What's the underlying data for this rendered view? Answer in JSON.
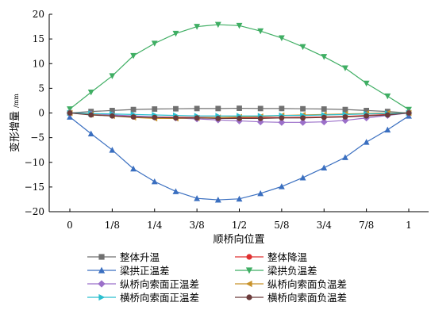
{
  "chart_data": {
    "type": "line",
    "xlabel": "顺桥向位置",
    "ylabel": "变形增量",
    "yunit": "/mm",
    "x_ticks": [
      "0",
      "1/8",
      "1/4",
      "3/8",
      "1/2",
      "5/8",
      "3/4",
      "7/8",
      "1"
    ],
    "y_ticks": [
      "20",
      "15",
      "10",
      "5",
      "0",
      "−5",
      "−10",
      "−15",
      "−20"
    ],
    "ylim": [
      -20,
      20
    ],
    "xlim": [
      0,
      1
    ],
    "legend_position": "bottom",
    "x": [
      0,
      0.0625,
      0.125,
      0.1875,
      0.25,
      0.3125,
      0.375,
      0.4375,
      0.5,
      0.5625,
      0.625,
      0.6875,
      0.75,
      0.8125,
      0.875,
      0.9375,
      1
    ],
    "series": [
      {
        "name": "整体升温",
        "color": "#707070",
        "marker": "square",
        "values": [
          0,
          0.3,
          0.5,
          0.7,
          0.8,
          0.85,
          0.9,
          0.9,
          0.95,
          0.9,
          0.9,
          0.85,
          0.8,
          0.7,
          0.5,
          0.3,
          0
        ]
      },
      {
        "name": "整体降温",
        "color": "#e03030",
        "marker": "circle",
        "values": [
          0,
          -0.3,
          -0.5,
          -0.7,
          -0.8,
          -0.85,
          -0.9,
          -0.9,
          -0.95,
          -0.9,
          -0.9,
          -0.85,
          -0.8,
          -0.7,
          -0.5,
          -0.3,
          0
        ]
      },
      {
        "name": "梁拱正温差",
        "color": "#3a6fc0",
        "marker": "triangle-up",
        "values": [
          -0.8,
          -4.2,
          -7.5,
          -11.3,
          -13.9,
          -15.9,
          -17.3,
          -17.6,
          -17.4,
          -16.3,
          -14.9,
          -13.1,
          -11.1,
          -9.0,
          -5.9,
          -3.4,
          -0.6
        ]
      },
      {
        "name": "梁拱负温差",
        "color": "#3fae63",
        "marker": "triangle-down",
        "values": [
          0.8,
          4.2,
          7.5,
          11.6,
          14.1,
          16.1,
          17.5,
          17.9,
          17.7,
          16.6,
          15.2,
          13.4,
          11.4,
          9.1,
          6.0,
          3.4,
          0.7
        ]
      },
      {
        "name": "纵桥向索面正温差",
        "color": "#9b6fc9",
        "marker": "diamond",
        "values": [
          0,
          -0.2,
          -0.4,
          -0.6,
          -0.8,
          -1.0,
          -1.2,
          -1.4,
          -1.6,
          -1.8,
          -1.9,
          -1.9,
          -1.8,
          -1.5,
          -1.0,
          -0.5,
          0
        ]
      },
      {
        "name": "纵桥向索面负温差",
        "color": "#c8922a",
        "marker": "triangle-left",
        "values": [
          0,
          -0.3,
          -0.6,
          -0.9,
          -1.1,
          -1.1,
          -1.0,
          -0.9,
          -0.8,
          -0.7,
          -0.5,
          -0.4,
          -0.3,
          -0.2,
          -0.1,
          0,
          0
        ]
      },
      {
        "name": "横桥向索面正温差",
        "color": "#2bbfcf",
        "marker": "triangle-right",
        "values": [
          0,
          -0.1,
          -0.2,
          -0.3,
          -0.4,
          -0.5,
          -0.6,
          -0.6,
          -0.6,
          -0.6,
          -0.5,
          -0.5,
          -0.4,
          -0.3,
          -0.2,
          -0.1,
          0
        ]
      },
      {
        "name": "横桥向索面负温差",
        "color": "#6b3b3b",
        "marker": "circle",
        "values": [
          0,
          -0.4,
          -0.6,
          -0.8,
          -0.9,
          -1.0,
          -1.0,
          -1.1,
          -1.1,
          -1.1,
          -1.0,
          -1.0,
          -0.9,
          -0.8,
          -0.6,
          -0.4,
          0
        ]
      }
    ]
  }
}
